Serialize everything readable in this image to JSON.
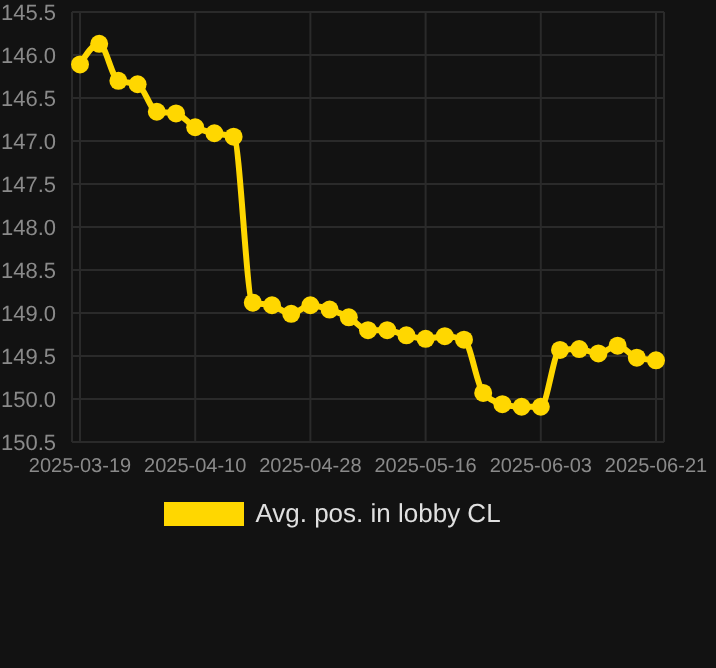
{
  "chart_data": {
    "type": "line",
    "categories": [
      "2025-03-19",
      null,
      null,
      null,
      null,
      null,
      "2025-04-10",
      null,
      null,
      null,
      null,
      null,
      "2025-04-28",
      null,
      null,
      null,
      null,
      null,
      "2025-05-16",
      null,
      null,
      null,
      null,
      null,
      "2025-06-03",
      null,
      null,
      null,
      null,
      null,
      "2025-06-21"
    ],
    "series": [
      {
        "name": "Avg. pos. in lobby CL",
        "color": "#ffd700",
        "values": [
          146.11,
          145.87,
          146.3,
          146.34,
          146.66,
          146.68,
          146.84,
          146.91,
          146.95,
          148.88,
          148.91,
          149.01,
          148.91,
          148.96,
          149.05,
          149.2,
          149.2,
          149.26,
          149.3,
          149.27,
          149.31,
          149.93,
          150.06,
          150.09,
          150.09,
          149.43,
          149.42,
          149.47,
          149.38,
          149.52,
          149.55
        ]
      }
    ],
    "ylim": [
      150.5,
      145.5
    ],
    "yticks": [
      {
        "value": 145.5,
        "label": "145.5"
      },
      {
        "value": 146,
        "label": "146.0"
      },
      {
        "value": 146.5,
        "label": "146.5"
      },
      {
        "value": 147,
        "label": "147.0"
      },
      {
        "value": 147.5,
        "label": "147.5"
      },
      {
        "value": 148,
        "label": "148.0"
      },
      {
        "value": 148.5,
        "label": "148.5"
      },
      {
        "value": 149,
        "label": "149.0"
      },
      {
        "value": 149.5,
        "label": "149.5"
      },
      {
        "value": 150,
        "label": "150.0"
      },
      {
        "value": 150.5,
        "label": "150.5"
      }
    ],
    "grid": true,
    "legend": "bottom",
    "marker": "circle",
    "line_style": "solid"
  }
}
